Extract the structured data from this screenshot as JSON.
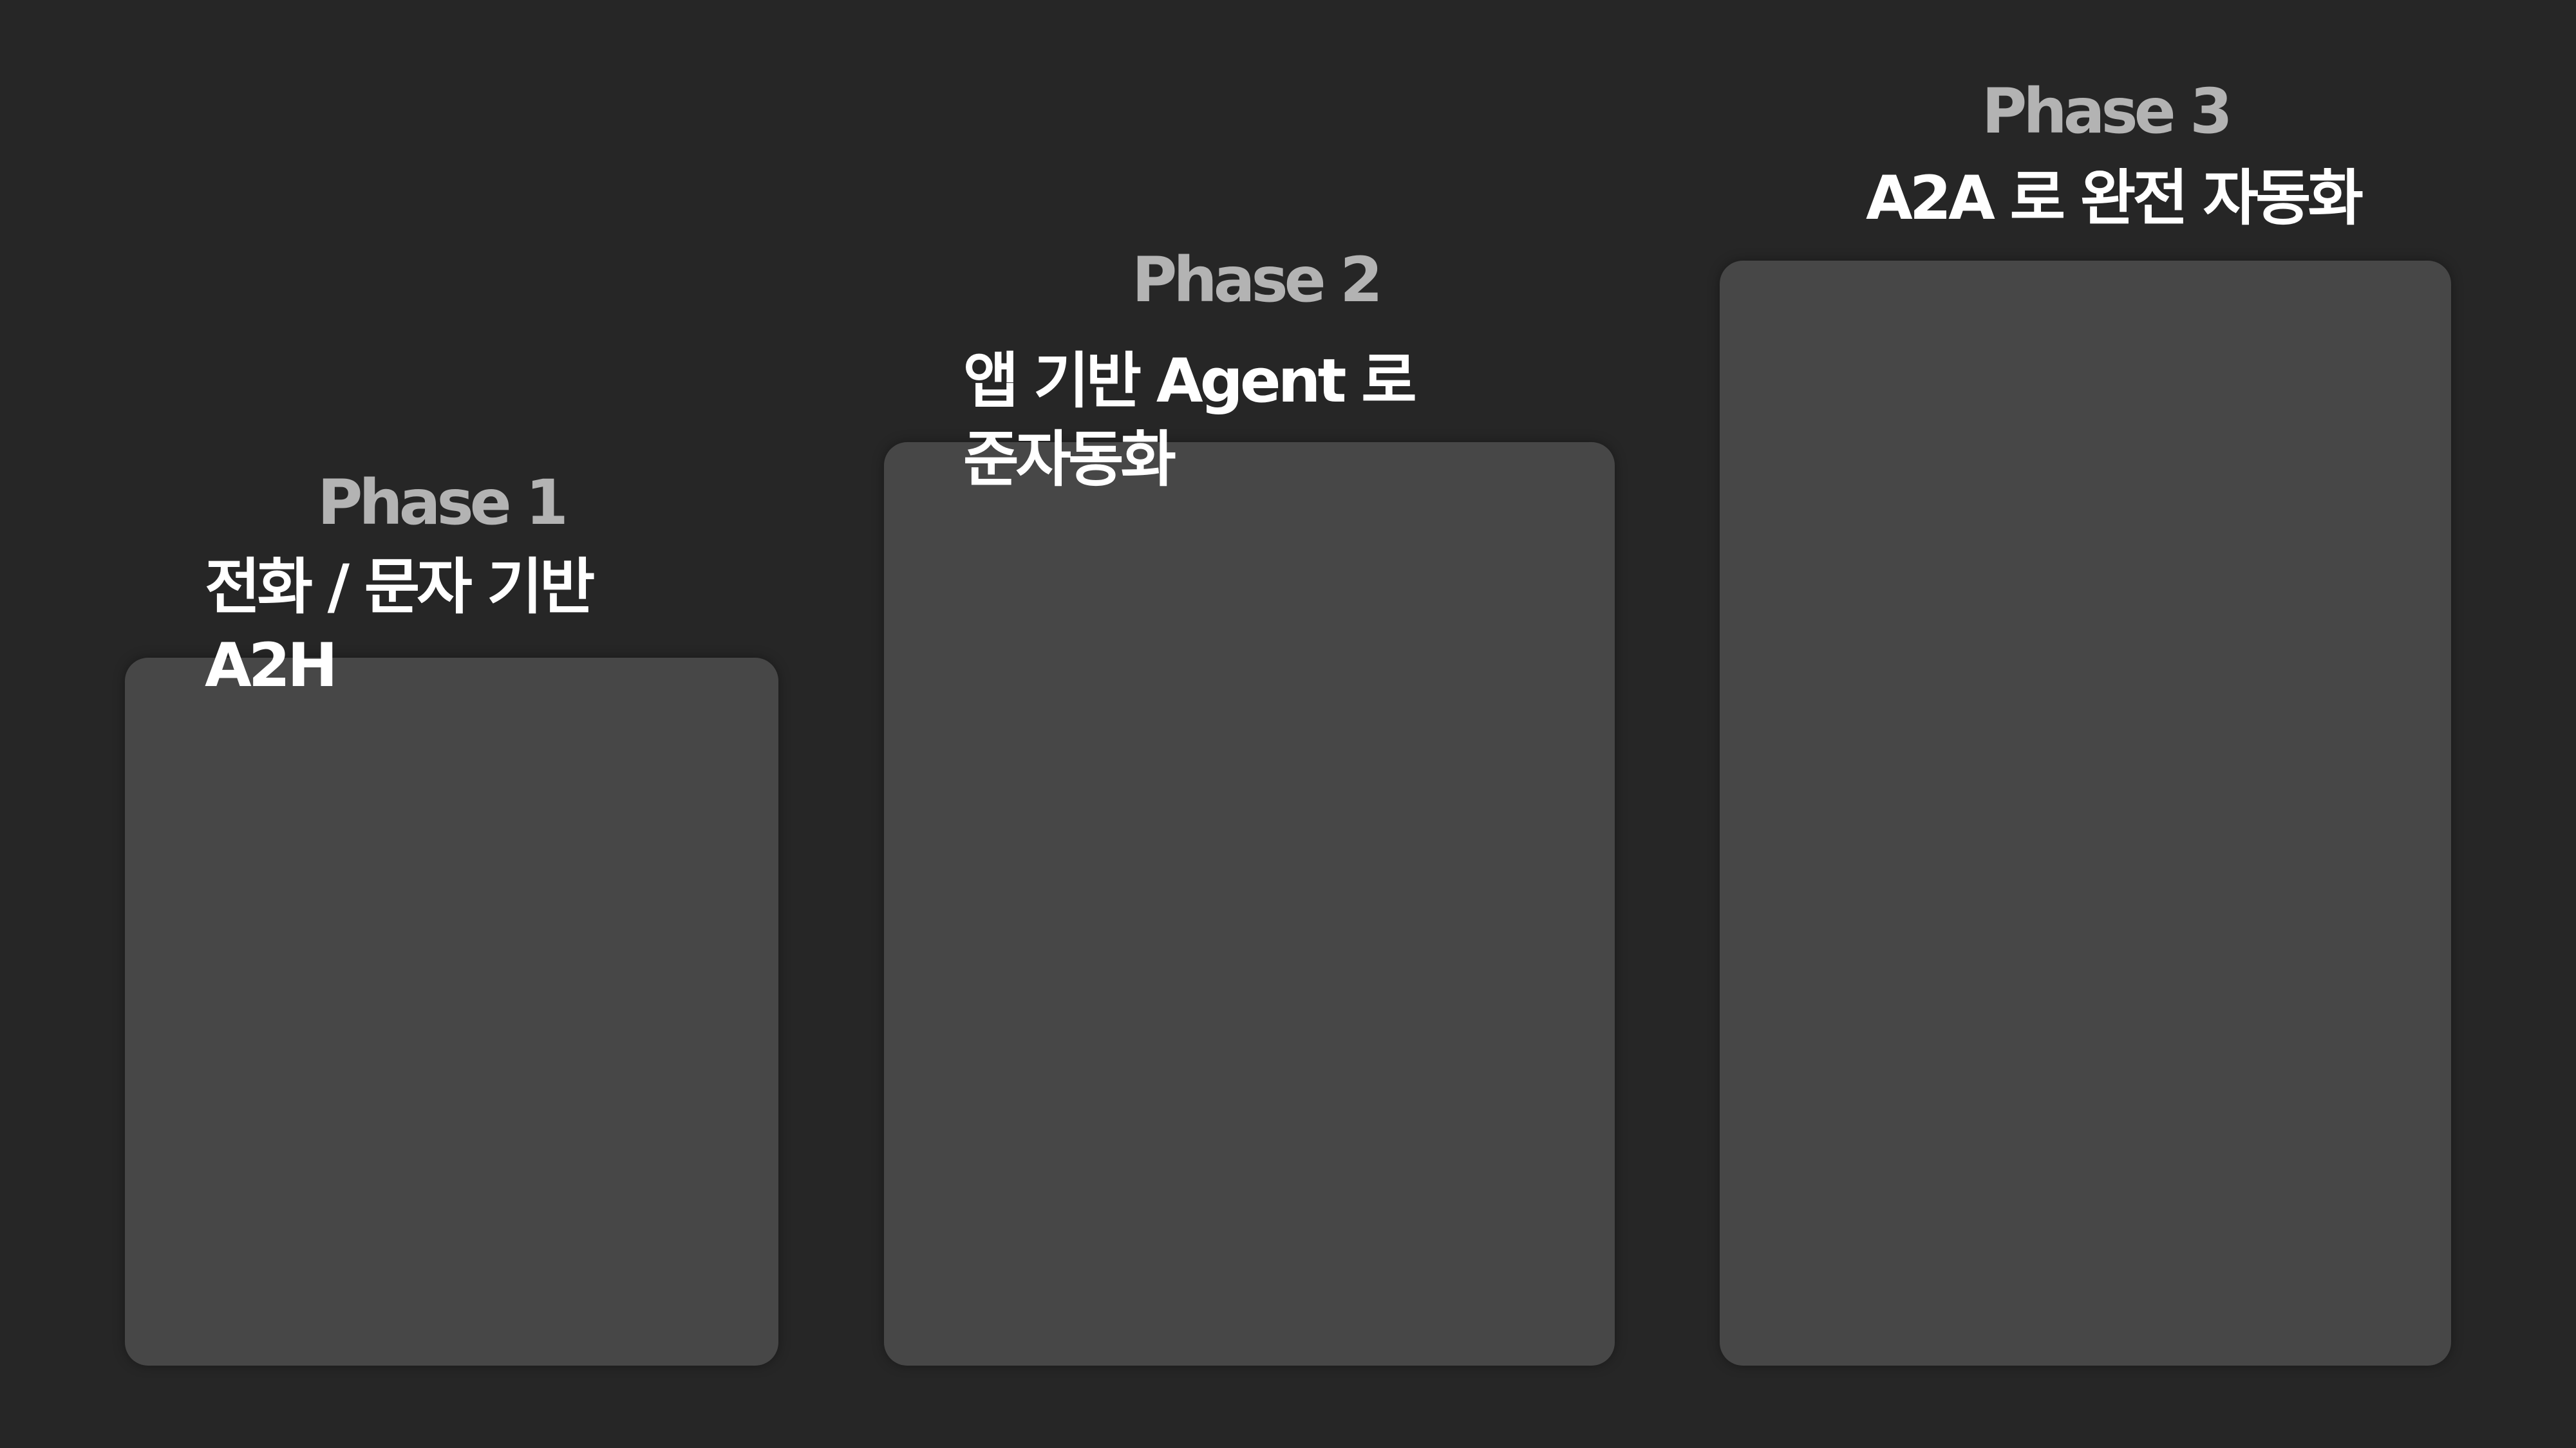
{
  "phases": [
    {
      "title": "Phase 1",
      "description": "전화 / 문자 기반\nA2H"
    },
    {
      "title": "Phase 2",
      "description": "앱 기반  Agent 로\n준자동화"
    },
    {
      "title": "Phase 3",
      "description": "A2A 로 완전 자동화"
    }
  ],
  "colors": {
    "background": "#262626",
    "card": "#474747",
    "phase_title": "#b3b3b3",
    "description": "#ffffff"
  }
}
